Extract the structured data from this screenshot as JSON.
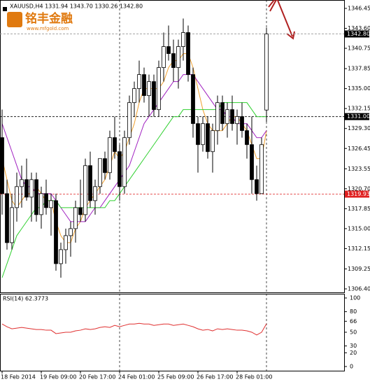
{
  "logo": {
    "text": "铭丰金融",
    "url": "www.mfgold.com"
  },
  "chart_data": {
    "type": "candlestick",
    "title": "XAUUSD,H4  1331.94 1343.70 1330.26 1342.80",
    "categories": [
      "18 Feb 2014",
      null,
      null,
      null,
      null,
      null,
      null,
      null,
      "19 Feb 09:00",
      null,
      null,
      null,
      null,
      null,
      null,
      null,
      "20 Feb 17:00",
      null,
      null,
      null,
      null,
      null,
      null,
      null,
      "24 Feb 01:00",
      null,
      null,
      null,
      null,
      null,
      null,
      null,
      "25 Feb 09:00",
      null,
      null,
      null,
      null,
      null,
      null,
      null,
      "26 Feb 17:00",
      null,
      null,
      null,
      null,
      null,
      null,
      null,
      "28 Feb 01:00",
      null,
      null,
      null,
      null,
      null,
      null
    ],
    "open": [
      1328,
      1320,
      1313,
      1318,
      1321,
      1322,
      1319.5,
      1322,
      1317,
      1320,
      1318,
      1319,
      1310,
      1312,
      1314,
      1315,
      1318,
      1317,
      1324,
      1319,
      1321,
      1325,
      1323,
      1328,
      1326,
      1321,
      1328,
      1333,
      1335,
      1337,
      1334,
      1336,
      1332,
      1338,
      1341,
      1340,
      1338,
      1341,
      1343,
      1337,
      1330,
      1327,
      1330,
      1326,
      1329,
      1333,
      1330,
      1332,
      1330,
      1331,
      1329,
      1327,
      1322,
      1320,
      1331.94
    ],
    "high": [
      1332,
      1322,
      1320,
      1323,
      1324,
      1325,
      1323,
      1323,
      1321,
      1322,
      1320,
      1320,
      1313,
      1315,
      1316,
      1319,
      1322,
      1325,
      1326,
      1322,
      1325,
      1326,
      1329,
      1331,
      1327,
      1329,
      1334,
      1336,
      1339,
      1338,
      1337,
      1337,
      1339,
      1343,
      1344,
      1342,
      1342,
      1345,
      1344,
      1338,
      1331,
      1331,
      1331,
      1330,
      1334,
      1334,
      1333,
      1334,
      1332,
      1333,
      1330,
      1331,
      1324,
      1328,
      1343.7
    ],
    "low": [
      1317,
      1312,
      1312,
      1316,
      1318,
      1319,
      1316,
      1316,
      1315,
      1317,
      1314,
      1309,
      1308,
      1310,
      1311,
      1313,
      1316,
      1316,
      1318,
      1317,
      1320,
      1322,
      1322,
      1325,
      1319,
      1320,
      1327,
      1331,
      1333,
      1333,
      1331,
      1331,
      1331,
      1336,
      1339,
      1336,
      1335,
      1339,
      1336,
      1328,
      1323,
      1326,
      1325,
      1323,
      1327,
      1329,
      1328,
      1329,
      1327,
      1328,
      1325,
      1320,
      1319,
      1320,
      1330.26
    ],
    "close": [
      1320,
      1313,
      1318,
      1321,
      1322,
      1319.5,
      1322,
      1317,
      1320,
      1318,
      1319,
      1310,
      1312,
      1314,
      1315,
      1318,
      1317,
      1324,
      1319,
      1321,
      1325,
      1323,
      1328,
      1326,
      1321,
      1328,
      1333,
      1335,
      1337,
      1334,
      1336,
      1332,
      1338,
      1341,
      1340,
      1338,
      1341,
      1343,
      1337,
      1330,
      1327,
      1330,
      1326,
      1329,
      1333,
      1330,
      1332,
      1330,
      1331,
      1329,
      1327,
      1322,
      1320,
      1327,
      1342.8
    ],
    "up_color": "#ffffff",
    "down_color": "#000000",
    "series": [
      {
        "color": "#f0a030",
        "values": [
          1325,
          1322,
          1319,
          1318,
          1319,
          1320,
          1320,
          1321,
          1320,
          1319,
          1319,
          1316,
          1314,
          1313,
          1313,
          1315,
          1316,
          1318,
          1319,
          1320,
          1321,
          1322,
          1324,
          1326,
          1325,
          1326,
          1328,
          1330,
          1333,
          1335,
          1335,
          1335,
          1335,
          1336,
          1338,
          1339,
          1339,
          1340,
          1340,
          1338,
          1335,
          1332,
          1330,
          1329,
          1329,
          1329,
          1330,
          1331,
          1331,
          1330,
          1329,
          1327,
          1325,
          1325,
          1329
        ]
      },
      {
        "color": "#a020c0",
        "values": [
          1330,
          1328,
          1326,
          1324,
          1322,
          1321,
          1321,
          1320,
          1320,
          1320,
          1320,
          1319,
          1318,
          1317,
          1316,
          1316,
          1316,
          1316,
          1317,
          1318,
          1318,
          1319,
          1320,
          1321,
          1322,
          1323,
          1324,
          1326,
          1328,
          1330,
          1331,
          1332,
          1333,
          1334,
          1335,
          1336,
          1336,
          1337,
          1337,
          1337,
          1336,
          1335,
          1334,
          1333,
          1332,
          1332,
          1331,
          1331,
          1330,
          1330,
          1330,
          1329,
          1328,
          1328,
          1329
        ]
      },
      {
        "color": "#30d030",
        "values": [
          1308,
          1310,
          1312,
          1314,
          1315,
          1316,
          1317,
          1318,
          1318,
          1319,
          1319,
          1319,
          1318,
          1318,
          1318,
          1318,
          1318,
          1318,
          1318,
          1318,
          1318,
          1318,
          1319,
          1319,
          1320,
          1321,
          1322,
          1323,
          1324,
          1325,
          1326,
          1327,
          1328,
          1329,
          1330,
          1331,
          1331,
          1332,
          1332,
          1332,
          1332,
          1332,
          1332,
          1332,
          1332,
          1333,
          1333,
          1333,
          1333,
          1333,
          1333,
          1332,
          1331,
          1331,
          1331
        ]
      }
    ],
    "ylim": [
      1305.9,
      1347.65
    ],
    "yticks": [
      1346.45,
      {
        "value": 1343.6,
        "label": "1343.60"
      },
      1340.75,
      1337.85,
      {
        "value": 1335,
        "label": "1335.00"
      },
      1332.15,
      {
        "value": 1329.3,
        "label": "1329.30"
      },
      1326.45,
      1323.55,
      {
        "value": 1320.7,
        "label": "1320.70"
      },
      1317.85,
      {
        "value": 1315,
        "label": "1315.00"
      },
      1312.15,
      1309.25,
      {
        "value": 1306.4,
        "label": "1306.40"
      }
    ],
    "markers": [
      {
        "value": 1342.8,
        "label": "1342.80",
        "color": "#000000",
        "line_color": "#9a9a9a"
      },
      {
        "value": 1331,
        "label": "1331.00",
        "color": "#000000",
        "line_color": "#000000"
      },
      {
        "value": 1319.93,
        "label": "1319.93",
        "color": "#e02020",
        "line_color": "#e02020"
      }
    ],
    "rsi": {
      "title": "RSI(14) 62.3773",
      "color": "#e03030",
      "ylim": [
        0,
        100
      ],
      "yticks": [
        100,
        80,
        66,
        50,
        30,
        20,
        0
      ],
      "values": [
        62,
        58,
        55,
        56,
        57,
        56,
        55,
        54,
        54,
        53,
        53,
        48,
        49,
        50,
        50,
        52,
        53,
        55,
        54,
        55,
        57,
        58,
        57,
        60,
        58,
        60,
        62,
        62,
        63,
        62,
        62,
        60,
        61,
        62,
        62,
        60,
        61,
        62,
        60,
        58,
        55,
        53,
        54,
        52,
        55,
        54,
        55,
        54,
        53,
        53,
        52,
        50,
        46,
        50,
        62.3773
      ]
    }
  }
}
